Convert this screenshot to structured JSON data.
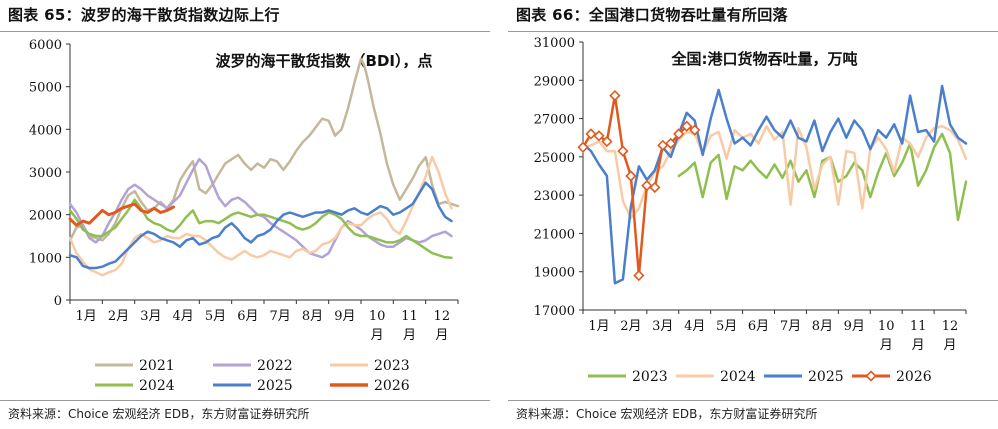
{
  "panels": [
    {
      "title": "图表 65：波罗的海干散货指数边际上行",
      "source": "资料来源：Choice 宏观经济 EDB，东方财富证券研究所"
    },
    {
      "title": "图表 66：全国港口货物吞吐量有所回落",
      "source": "资料来源：Choice 宏观经济 EDB，东方财富证券研究所"
    }
  ],
  "chart_data": [
    {
      "type": "line",
      "title": "波罗的海干散货指数（BDI），点",
      "x_ticks": [
        "1月",
        "2月",
        "3月",
        "4月",
        "5月",
        "6月",
        "7月",
        "8月",
        "9月",
        "10月",
        "11月",
        "12月"
      ],
      "x_range": [
        1,
        13
      ],
      "y_ticks": [
        "0",
        "1000",
        "2000",
        "3000",
        "4000",
        "5000",
        "6000"
      ],
      "ylim": [
        0,
        6000
      ],
      "legend_placement": "bottom",
      "series": [
        {
          "name": "2021",
          "color": "#c4b89a",
          "stroke_width": 2.5,
          "x": [
            1.0,
            1.2,
            1.4,
            1.6,
            1.8,
            2.0,
            2.2,
            2.4,
            2.6,
            2.8,
            3.0,
            3.2,
            3.4,
            3.6,
            3.8,
            4.0,
            4.2,
            4.4,
            4.6,
            4.8,
            5.0,
            5.2,
            5.4,
            5.6,
            5.8,
            6.0,
            6.2,
            6.4,
            6.6,
            6.8,
            7.0,
            7.2,
            7.4,
            7.6,
            7.8,
            8.0,
            8.2,
            8.4,
            8.6,
            8.8,
            9.0,
            9.2,
            9.4,
            9.6,
            9.8,
            10.0,
            10.1,
            10.2,
            10.4,
            10.6,
            10.8,
            11.0,
            11.2,
            11.4,
            11.6,
            11.8,
            12.0,
            12.2,
            12.4,
            12.6,
            12.8,
            13.0
          ],
          "y": [
            1400,
            1700,
            1750,
            1500,
            1450,
            1400,
            1550,
            1800,
            2150,
            2450,
            2550,
            2300,
            2100,
            2150,
            2300,
            2150,
            2350,
            2800,
            3050,
            3250,
            2600,
            2500,
            2700,
            2950,
            3200,
            3300,
            3400,
            3200,
            3050,
            3200,
            3100,
            3300,
            3250,
            3050,
            3250,
            3500,
            3700,
            3850,
            4050,
            4250,
            4200,
            3850,
            4000,
            4500,
            5100,
            5650,
            5500,
            5200,
            4500,
            3900,
            3200,
            2700,
            2350,
            2600,
            2850,
            3150,
            3350,
            2700,
            2250,
            2300,
            2250,
            2200
          ]
        },
        {
          "name": "2022",
          "color": "#b3a2d6",
          "stroke_width": 2.5,
          "x": [
            1.0,
            1.2,
            1.4,
            1.6,
            1.8,
            2.0,
            2.2,
            2.4,
            2.6,
            2.8,
            3.0,
            3.2,
            3.4,
            3.6,
            3.8,
            4.0,
            4.2,
            4.4,
            4.6,
            4.8,
            5.0,
            5.2,
            5.4,
            5.6,
            5.8,
            6.0,
            6.2,
            6.4,
            6.6,
            6.8,
            7.0,
            7.2,
            7.4,
            7.6,
            7.8,
            8.0,
            8.2,
            8.4,
            8.6,
            8.8,
            9.0,
            9.2,
            9.4,
            9.6,
            9.8,
            10.0,
            10.2,
            10.4,
            10.6,
            10.8,
            11.0,
            11.2,
            11.4,
            11.6,
            11.8,
            12.0,
            12.2,
            12.4,
            12.6,
            12.8
          ],
          "y": [
            2250,
            2050,
            1750,
            1450,
            1350,
            1500,
            1800,
            2050,
            2350,
            2600,
            2700,
            2600,
            2450,
            2350,
            2250,
            2150,
            2300,
            2450,
            2750,
            3050,
            3300,
            3150,
            2750,
            2400,
            2200,
            2350,
            2400,
            2300,
            2150,
            2000,
            1950,
            1800,
            1700,
            1600,
            1500,
            1400,
            1250,
            1100,
            1050,
            1000,
            1100,
            1400,
            1700,
            1850,
            1750,
            1650,
            1500,
            1400,
            1300,
            1250,
            1250,
            1350,
            1450,
            1400,
            1350,
            1400,
            1500,
            1550,
            1600,
            1500
          ]
        },
        {
          "name": "2023",
          "color": "#f8cba6",
          "stroke_width": 2.5,
          "x": [
            1.0,
            1.2,
            1.4,
            1.6,
            1.8,
            2.0,
            2.2,
            2.4,
            2.6,
            2.8,
            3.0,
            3.2,
            3.4,
            3.6,
            3.8,
            4.0,
            4.2,
            4.4,
            4.6,
            4.8,
            5.0,
            5.2,
            5.4,
            5.6,
            5.8,
            6.0,
            6.2,
            6.4,
            6.6,
            6.8,
            7.0,
            7.2,
            7.4,
            7.6,
            7.8,
            8.0,
            8.2,
            8.4,
            8.6,
            8.8,
            9.0,
            9.2,
            9.4,
            9.6,
            9.8,
            10.0,
            10.2,
            10.4,
            10.6,
            10.8,
            11.0,
            11.2,
            11.4,
            11.6,
            11.8,
            12.0,
            12.2,
            12.4,
            12.6,
            12.8
          ],
          "y": [
            1450,
            1100,
            900,
            720,
            650,
            580,
            650,
            700,
            850,
            1200,
            1450,
            1550,
            1450,
            1350,
            1400,
            1500,
            1450,
            1450,
            1550,
            1500,
            1500,
            1400,
            1250,
            1100,
            1000,
            950,
            1050,
            1150,
            1050,
            1000,
            1050,
            1150,
            1100,
            1050,
            1000,
            1150,
            1200,
            1100,
            1150,
            1300,
            1350,
            1450,
            1700,
            1800,
            1750,
            1750,
            1900,
            2000,
            2050,
            1900,
            1650,
            1550,
            1850,
            2200,
            2500,
            2900,
            3350,
            3000,
            2500,
            2150
          ]
        },
        {
          "name": "2024",
          "color": "#8fbf4f",
          "stroke_width": 2.5,
          "x": [
            1.0,
            1.2,
            1.4,
            1.6,
            1.8,
            2.0,
            2.2,
            2.4,
            2.6,
            2.8,
            3.0,
            3.2,
            3.4,
            3.6,
            3.8,
            4.0,
            4.2,
            4.4,
            4.6,
            4.8,
            5.0,
            5.2,
            5.4,
            5.6,
            5.8,
            6.0,
            6.2,
            6.4,
            6.6,
            6.8,
            7.0,
            7.2,
            7.4,
            7.6,
            7.8,
            8.0,
            8.2,
            8.4,
            8.6,
            8.8,
            9.0,
            9.2,
            9.4,
            9.6,
            9.8,
            10.0,
            10.2,
            10.4,
            10.6,
            10.8,
            11.0,
            11.2,
            11.4,
            11.6,
            11.8,
            12.0,
            12.2,
            12.4,
            12.6,
            12.8
          ],
          "y": [
            2100,
            1900,
            1650,
            1550,
            1500,
            1500,
            1600,
            1700,
            1900,
            2100,
            2350,
            2150,
            1900,
            1800,
            1750,
            1650,
            1600,
            1750,
            1950,
            2100,
            1800,
            1850,
            1850,
            1800,
            1900,
            2000,
            2050,
            2000,
            1950,
            2000,
            2000,
            1950,
            1900,
            1850,
            1800,
            1700,
            1650,
            1700,
            1800,
            1950,
            2050,
            2000,
            1900,
            1700,
            1550,
            1500,
            1500,
            1450,
            1400,
            1350,
            1350,
            1400,
            1500,
            1400,
            1300,
            1200,
            1100,
            1050,
            1000,
            990
          ]
        },
        {
          "name": "2025",
          "color": "#4a7fcc",
          "stroke_width": 2.5,
          "x": [
            1.0,
            1.2,
            1.4,
            1.6,
            1.8,
            2.0,
            2.2,
            2.4,
            2.6,
            2.8,
            3.0,
            3.2,
            3.4,
            3.6,
            3.8,
            4.0,
            4.2,
            4.4,
            4.6,
            4.8,
            5.0,
            5.2,
            5.4,
            5.6,
            5.8,
            6.0,
            6.2,
            6.4,
            6.6,
            6.8,
            7.0,
            7.2,
            7.4,
            7.6,
            7.8,
            8.0,
            8.2,
            8.4,
            8.6,
            8.8,
            9.0,
            9.2,
            9.4,
            9.6,
            9.8,
            10.0,
            10.2,
            10.4,
            10.6,
            10.8,
            11.0,
            11.2,
            11.4,
            11.6,
            11.8,
            12.0,
            12.2,
            12.4,
            12.6,
            12.8
          ],
          "y": [
            1050,
            1000,
            800,
            750,
            750,
            780,
            850,
            900,
            1050,
            1200,
            1350,
            1500,
            1600,
            1550,
            1450,
            1400,
            1350,
            1250,
            1400,
            1450,
            1300,
            1350,
            1450,
            1500,
            1700,
            1800,
            1650,
            1450,
            1350,
            1500,
            1550,
            1650,
            1850,
            2000,
            2050,
            2000,
            1950,
            2000,
            2050,
            2050,
            2100,
            2050,
            2000,
            2100,
            2150,
            2050,
            2000,
            2100,
            2200,
            2150,
            2000,
            2050,
            2150,
            2250,
            2500,
            2750,
            2600,
            2200,
            1950,
            1850
          ]
        },
        {
          "name": "2026",
          "color": "#e05a1e",
          "stroke_width": 3,
          "x": [
            1.0,
            1.2,
            1.4,
            1.6,
            1.8,
            2.0,
            2.2,
            2.4,
            2.6,
            2.8,
            3.0,
            3.2,
            3.4,
            3.6,
            3.8,
            4.0,
            4.2
          ],
          "y": [
            1900,
            1750,
            1850,
            1800,
            1950,
            2100,
            2000,
            2050,
            2150,
            2200,
            2250,
            2100,
            2050,
            2150,
            2050,
            2100,
            2180
          ]
        }
      ]
    },
    {
      "type": "line",
      "title": "全国:港口货物吞吐量，万吨",
      "x_ticks": [
        "1月",
        "2月",
        "3月",
        "4月",
        "5月",
        "6月",
        "7月",
        "8月",
        "9月",
        "10月",
        "11月",
        "12月"
      ],
      "x_range": [
        1,
        13
      ],
      "y_ticks": [
        "17000",
        "19000",
        "21000",
        "23000",
        "25000",
        "27000",
        "29000",
        "31000"
      ],
      "ylim": [
        17000,
        31000
      ],
      "legend_placement": "bottom",
      "series": [
        {
          "name": "2023",
          "color": "#8fbf4f",
          "stroke_width": 2.5,
          "x": [
            4.0,
            4.25,
            4.5,
            4.75,
            5.0,
            5.25,
            5.5,
            5.75,
            6.0,
            6.25,
            6.5,
            6.75,
            7.0,
            7.25,
            7.5,
            7.75,
            8.0,
            8.25,
            8.5,
            8.75,
            9.0,
            9.25,
            9.5,
            9.75,
            10.0,
            10.25,
            10.5,
            10.75,
            11.0,
            11.25,
            11.5,
            11.75,
            12.0,
            12.25,
            12.5,
            12.75,
            13.0
          ],
          "y": [
            24000,
            24300,
            24700,
            22900,
            24700,
            25100,
            22800,
            24500,
            24300,
            24800,
            24300,
            23900,
            24600,
            23900,
            24800,
            23700,
            24300,
            22900,
            24800,
            25000,
            23700,
            24000,
            24700,
            24300,
            22900,
            24200,
            25200,
            24000,
            24700,
            25700,
            23500,
            24300,
            25500,
            26200,
            25200,
            21700,
            23700
          ]
        },
        {
          "name": "2024",
          "color": "#f8cba6",
          "stroke_width": 2.5,
          "x": [
            1.0,
            1.25,
            1.5,
            1.75,
            2.0,
            2.25,
            2.5,
            2.75,
            3.0,
            3.25,
            3.5,
            3.75,
            4.0,
            4.25,
            4.5,
            4.75,
            5.0,
            5.25,
            5.5,
            5.75,
            6.0,
            6.25,
            6.5,
            6.75,
            7.0,
            7.25,
            7.5,
            7.75,
            8.0,
            8.25,
            8.5,
            8.75,
            9.0,
            9.25,
            9.5,
            9.75,
            10.0,
            10.25,
            10.5,
            10.75,
            11.0,
            11.25,
            11.5,
            11.75,
            12.0,
            12.25,
            12.5,
            12.75,
            13.0
          ],
          "y": [
            25500,
            25600,
            25800,
            25300,
            25300,
            22700,
            21800,
            22300,
            23500,
            24200,
            24500,
            25300,
            25900,
            26300,
            26200,
            25200,
            26100,
            26300,
            24900,
            26400,
            26000,
            26200,
            25700,
            26600,
            25900,
            26300,
            22500,
            26500,
            25500,
            23300,
            24600,
            25000,
            22500,
            25300,
            25200,
            22300,
            25400,
            26000,
            25400,
            24200,
            26000,
            25700,
            25000,
            26000,
            26500,
            26600,
            26400,
            25900,
            24900
          ]
        },
        {
          "name": "2025",
          "color": "#4a7fcc",
          "stroke_width": 2.5,
          "x": [
            1.0,
            1.25,
            1.5,
            1.75,
            2.0,
            2.25,
            2.5,
            2.75,
            3.0,
            3.25,
            3.5,
            3.75,
            4.0,
            4.25,
            4.5,
            4.75,
            5.0,
            5.25,
            5.5,
            5.75,
            6.0,
            6.25,
            6.5,
            6.75,
            7.0,
            7.25,
            7.5,
            7.75,
            8.0,
            8.25,
            8.5,
            8.75,
            9.0,
            9.25,
            9.5,
            9.75,
            10.0,
            10.25,
            10.5,
            10.75,
            11.0,
            11.25,
            11.5,
            11.75,
            12.0,
            12.25,
            12.5,
            12.75,
            13.0
          ],
          "y": [
            25700,
            25300,
            24600,
            24000,
            18400,
            18600,
            22400,
            24500,
            23800,
            24300,
            25500,
            25000,
            26200,
            27300,
            26900,
            25100,
            27000,
            28500,
            27000,
            25700,
            26000,
            25600,
            26400,
            27100,
            26400,
            26000,
            26900,
            26000,
            25800,
            26900,
            25300,
            26300,
            27000,
            26000,
            26900,
            26400,
            25400,
            26400,
            26000,
            26700,
            25700,
            28200,
            26300,
            26400,
            25800,
            28700,
            26700,
            26000,
            25700
          ]
        },
        {
          "name": "2026",
          "color": "#e05a1e",
          "stroke_width": 2.5,
          "marker": "diamond",
          "x": [
            1.0,
            1.25,
            1.5,
            1.75,
            2.0,
            2.25,
            2.5,
            2.75,
            3.0,
            3.25,
            3.5,
            3.75,
            4.0,
            4.25,
            4.5
          ],
          "y": [
            25500,
            26200,
            26100,
            25800,
            28200,
            25300,
            24000,
            18800,
            23500,
            23400,
            25600,
            25700,
            26200,
            26600,
            26400
          ]
        }
      ]
    }
  ]
}
